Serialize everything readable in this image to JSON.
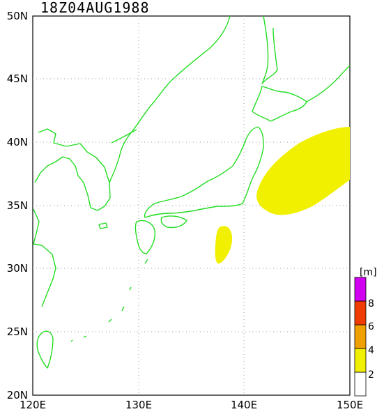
{
  "title": "18Z04AUG1988",
  "axes": {
    "lon_ticks": [
      "120E",
      "130E",
      "140E",
      "150E"
    ],
    "lat_ticks": [
      "20N",
      "25N",
      "30N",
      "35N",
      "40N",
      "45N",
      "50N"
    ],
    "lon_range": [
      120,
      150
    ],
    "lat_range": [
      20,
      50
    ],
    "grid": true
  },
  "colorbar": {
    "unit": "[m]",
    "labels": [
      "2",
      "4",
      "6",
      "8"
    ],
    "levels": [
      {
        "value": "0-2",
        "color": "#ffffff"
      },
      {
        "value": "2-4",
        "color": "#f0f000"
      },
      {
        "value": "4-6",
        "color": "#f0a000"
      },
      {
        "value": "6-8",
        "color": "#f03c00"
      },
      {
        "value": "8+",
        "color": "#d200f0"
      }
    ]
  },
  "colors": {
    "coastline": "#22dd22",
    "contour_2_4": "#f0f000"
  },
  "field": "wave height contours"
}
